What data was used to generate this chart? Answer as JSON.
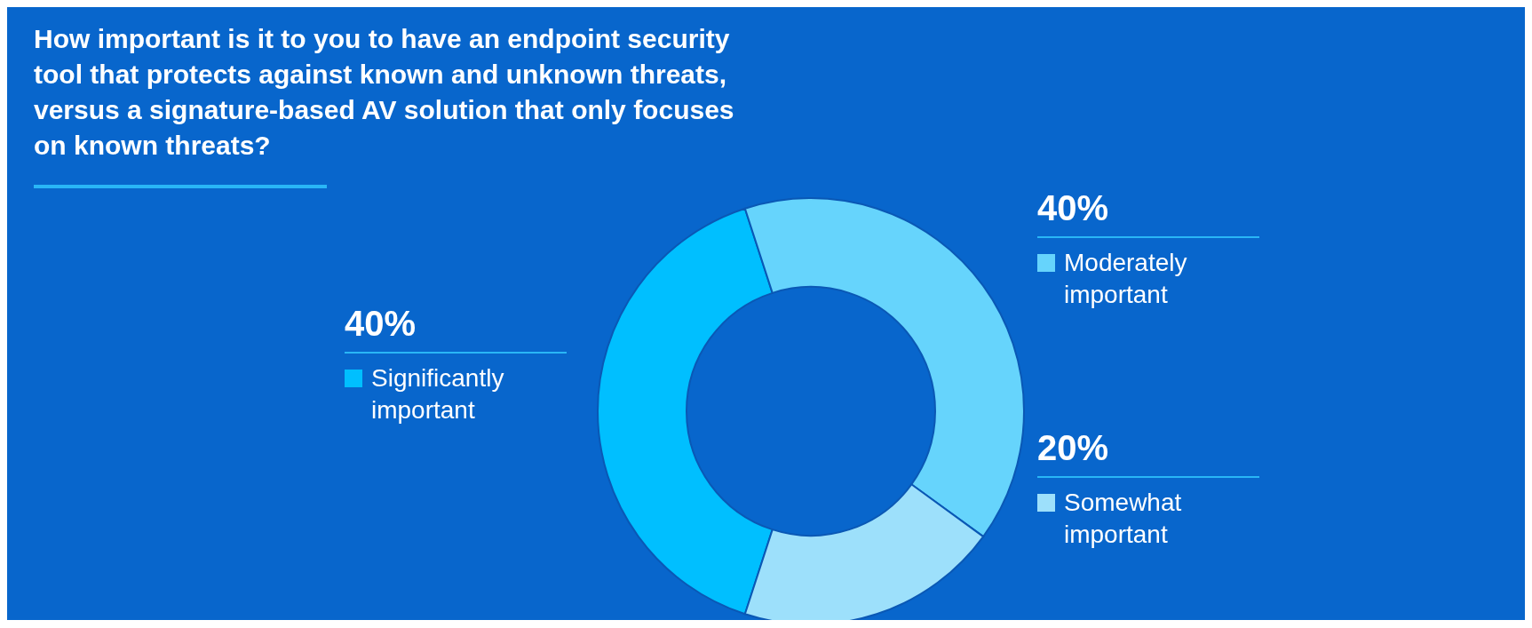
{
  "chart_data": {
    "type": "donut",
    "title": "How important is it to you to have an endpoint security tool that protects against known and unknown threats, versus a signature-based AV solution that only focuses on known threats?",
    "categories": [
      "Significantly important",
      "Moderately important",
      "Somewhat important"
    ],
    "values": [
      40,
      40,
      20
    ],
    "value_labels": [
      "40%",
      "40%",
      "20%"
    ],
    "colors": [
      "#00bfff",
      "#66d4fc",
      "#9de0fb"
    ],
    "legend": "top left"
  }
}
